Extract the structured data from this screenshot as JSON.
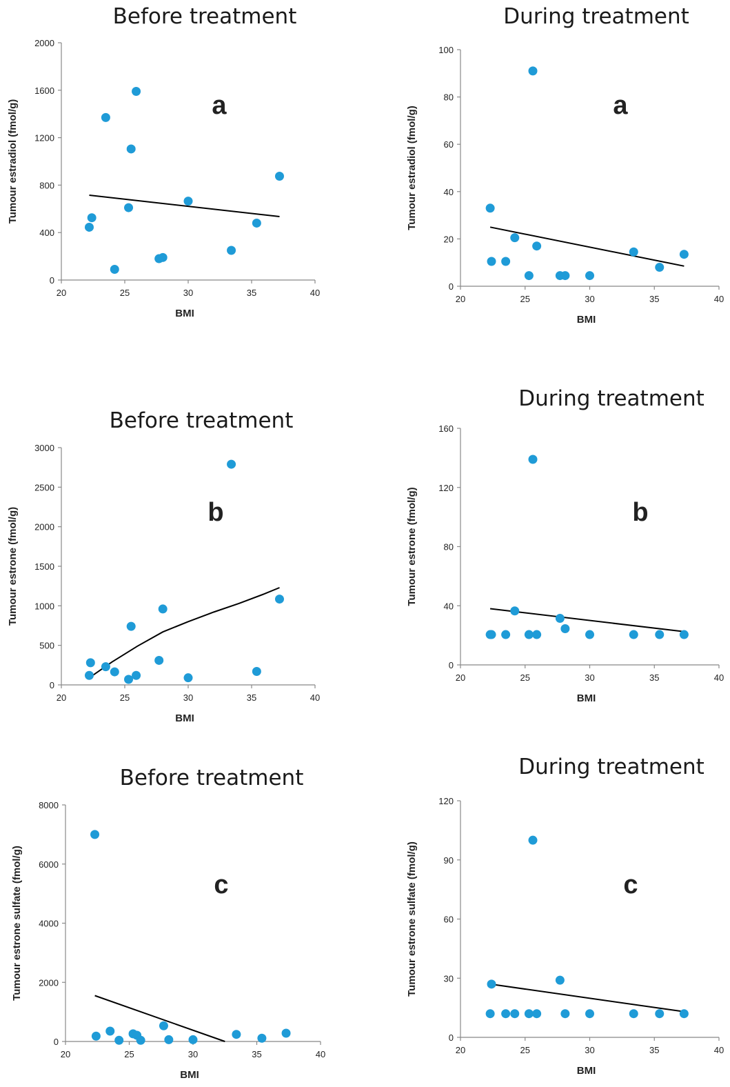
{
  "chart_data": [
    {
      "type": "scatter",
      "title": "Before treatment",
      "panel_label": "a",
      "xlabel": "BMI",
      "ylabel": "Tumour estradiol (fmol/g)",
      "xlim": [
        20,
        40
      ],
      "ylim": [
        0,
        2000
      ],
      "xticks": [
        "20",
        "25",
        "30",
        "35",
        "40"
      ],
      "yticks": [
        "0",
        "400",
        "800",
        "1200",
        "1600",
        "2000"
      ],
      "x": [
        22.2,
        22.4,
        23.5,
        24.2,
        25.3,
        25.5,
        25.9,
        27.7,
        28.0,
        30.0,
        33.4,
        35.4,
        37.2
      ],
      "y": [
        445,
        525,
        1370,
        90,
        610,
        1105,
        1590,
        180,
        190,
        665,
        250,
        480,
        875
      ],
      "trendline": {
        "x": [
          22.2,
          37.2
        ],
        "y": [
          715,
          535
        ]
      },
      "markerColor": "#1f9bd7"
    },
    {
      "type": "scatter",
      "title": "During treatment",
      "panel_label": "a",
      "xlabel": "BMI",
      "ylabel": "Tumour estradiol (fmol/g)",
      "xlim": [
        20,
        40
      ],
      "ylim": [
        0,
        100
      ],
      "xticks": [
        "20",
        "25",
        "30",
        "35",
        "40"
      ],
      "yticks": [
        "0",
        "20",
        "40",
        "60",
        "80",
        "100"
      ],
      "x": [
        22.3,
        22.4,
        23.5,
        24.2,
        25.3,
        25.6,
        25.9,
        27.7,
        28.1,
        30.0,
        33.4,
        35.4,
        37.3
      ],
      "y": [
        33,
        10.5,
        10.5,
        20.5,
        4.5,
        91,
        17,
        4.5,
        4.5,
        4.5,
        14.5,
        8,
        13.5
      ],
      "trendline": {
        "x": [
          22.3,
          37.3
        ],
        "y": [
          25,
          8.5
        ]
      },
      "markerColor": "#1f9bd7"
    },
    {
      "type": "scatter",
      "title": "Before treatment",
      "panel_label": "b",
      "xlabel": "BMI",
      "ylabel": "Tumour estrone (fmol/g)",
      "xlim": [
        20,
        40
      ],
      "ylim": [
        0,
        3000
      ],
      "xticks": [
        "20",
        "25",
        "30",
        "35",
        "40"
      ],
      "yticks": [
        "0",
        "500",
        "1000",
        "1500",
        "2000",
        "2500",
        "3000"
      ],
      "x": [
        22.2,
        22.3,
        23.5,
        24.2,
        25.3,
        25.5,
        25.9,
        27.7,
        28.0,
        30.0,
        33.4,
        35.4,
        37.2
      ],
      "y": [
        120,
        280,
        230,
        165,
        70,
        740,
        120,
        310,
        960,
        90,
        2790,
        170,
        1085
      ],
      "trendline": {
        "x": [
          22.2,
          24,
          26,
          28,
          30,
          32,
          34,
          36,
          37.2
        ],
        "y": [
          90,
          290,
          490,
          670,
          800,
          920,
          1030,
          1150,
          1230
        ]
      },
      "markerColor": "#1f9bd7"
    },
    {
      "type": "scatter",
      "title": "During treatment",
      "panel_label": "b",
      "xlabel": "BMI",
      "ylabel": "Tumour estrone (fmol/g)",
      "xlim": [
        20,
        40
      ],
      "ylim": [
        0,
        160
      ],
      "xticks": [
        "20",
        "25",
        "30",
        "35",
        "40"
      ],
      "yticks": [
        "0",
        "40",
        "80",
        "120",
        "160"
      ],
      "x": [
        22.3,
        22.4,
        23.5,
        24.2,
        25.3,
        25.6,
        25.9,
        27.7,
        28.1,
        30.0,
        33.4,
        35.4,
        37.3
      ],
      "y": [
        20.5,
        20.5,
        20.5,
        36.5,
        20.5,
        139,
        20.5,
        31.5,
        24.5,
        20.5,
        20.5,
        20.5,
        20.5
      ],
      "trendline": {
        "x": [
          22.3,
          37.3
        ],
        "y": [
          38,
          22.5
        ]
      },
      "markerColor": "#1f9bd7"
    },
    {
      "type": "scatter",
      "title": "Before treatment",
      "panel_label": "c",
      "xlabel": "BMI",
      "ylabel": "Tumour estrone sulfate  (fmol/g)",
      "xlim": [
        20,
        40
      ],
      "ylim": [
        0,
        8000
      ],
      "xticks": [
        "20",
        "25",
        "30",
        "35",
        "40"
      ],
      "yticks": [
        "0",
        "2000",
        "4000",
        "6000",
        "8000"
      ],
      "x": [
        22.3,
        22.4,
        23.5,
        24.2,
        25.3,
        25.6,
        25.9,
        27.7,
        28.1,
        30.0,
        33.4,
        35.4,
        37.3
      ],
      "y": [
        7000,
        180,
        350,
        40,
        260,
        210,
        40,
        530,
        60,
        60,
        240,
        110,
        280
      ],
      "trendline": {
        "x": [
          22.3,
          32.5
        ],
        "y": [
          1550,
          0
        ]
      },
      "markerColor": "#1f9bd7"
    },
    {
      "type": "scatter",
      "title": "During treatment",
      "panel_label": "c",
      "xlabel": "BMI",
      "ylabel": "Tumour estrone sulfate  (fmol/g)",
      "xlim": [
        20,
        40
      ],
      "ylim": [
        0,
        120
      ],
      "xticks": [
        "20",
        "25",
        "30",
        "35",
        "40"
      ],
      "yticks": [
        "0",
        "30",
        "60",
        "90",
        "120"
      ],
      "x": [
        22.3,
        22.4,
        23.5,
        24.2,
        25.3,
        25.6,
        25.9,
        27.7,
        28.1,
        30.0,
        33.4,
        35.4,
        37.3
      ],
      "y": [
        12,
        27,
        12,
        12,
        12,
        100,
        12,
        29,
        12,
        12,
        12,
        12,
        12
      ],
      "trendline": {
        "x": [
          22.3,
          37.3
        ],
        "y": [
          27,
          13
        ]
      },
      "markerColor": "#1f9bd7"
    }
  ]
}
